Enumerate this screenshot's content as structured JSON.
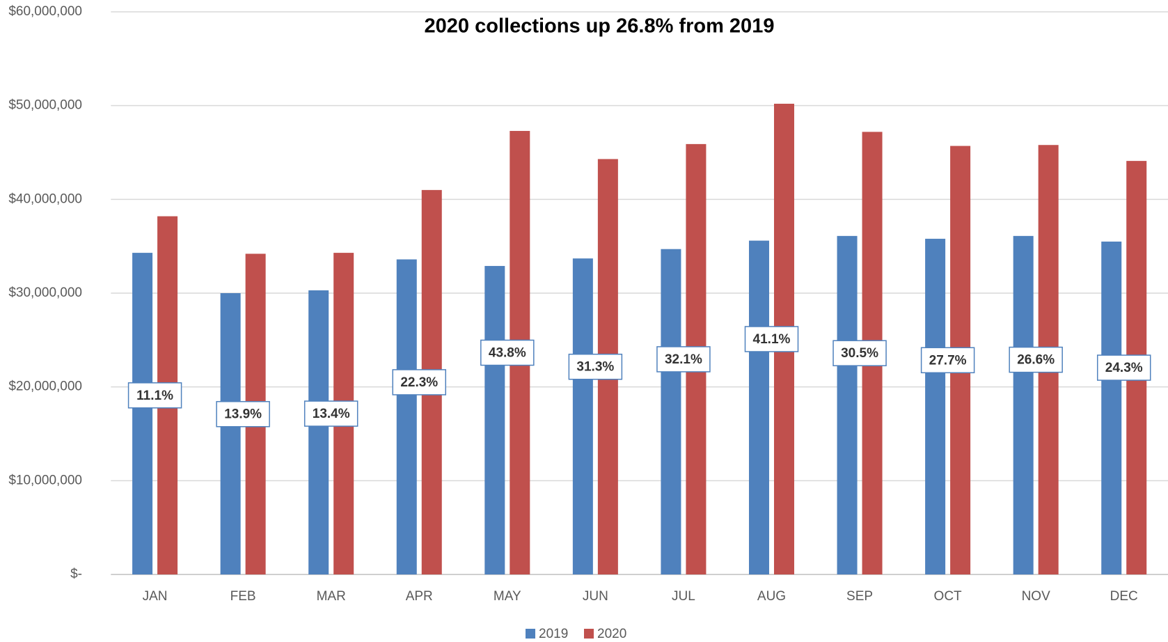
{
  "chart_data": {
    "type": "bar",
    "title": "2020 collections up 26.8% from 2019",
    "categories": [
      "JAN",
      "FEB",
      "MAR",
      "APR",
      "MAY",
      "JUN",
      "JUL",
      "AUG",
      "SEP",
      "OCT",
      "NOV",
      "DEC"
    ],
    "series": [
      {
        "name": "2019",
        "color": "#4f81bd",
        "values": [
          34300000,
          30000000,
          30300000,
          33600000,
          32900000,
          33700000,
          34700000,
          35600000,
          36100000,
          35800000,
          36100000,
          35500000
        ]
      },
      {
        "name": "2020",
        "color": "#c0504d",
        "values": [
          38200000,
          34200000,
          34300000,
          41000000,
          47300000,
          44300000,
          45900000,
          50200000,
          47200000,
          45700000,
          45800000,
          44100000
        ]
      }
    ],
    "change_labels": [
      "11.1%",
      "13.9%",
      "13.4%",
      "22.3%",
      "43.8%",
      "31.3%",
      "32.1%",
      "41.1%",
      "30.5%",
      "27.7%",
      "26.6%",
      "24.3%"
    ],
    "ylim": [
      0,
      60000000
    ],
    "yticks": [
      {
        "value": 0,
        "label": "$-"
      },
      {
        "value": 10000000,
        "label": "$10,000,000"
      },
      {
        "value": 20000000,
        "label": "$20,000,000"
      },
      {
        "value": 30000000,
        "label": "$30,000,000"
      },
      {
        "value": 40000000,
        "label": "$40,000,000"
      },
      {
        "value": 50000000,
        "label": "$50,000,000"
      },
      {
        "value": 60000000,
        "label": "$60,000,000"
      }
    ],
    "grid": true,
    "legend": "bottom"
  }
}
